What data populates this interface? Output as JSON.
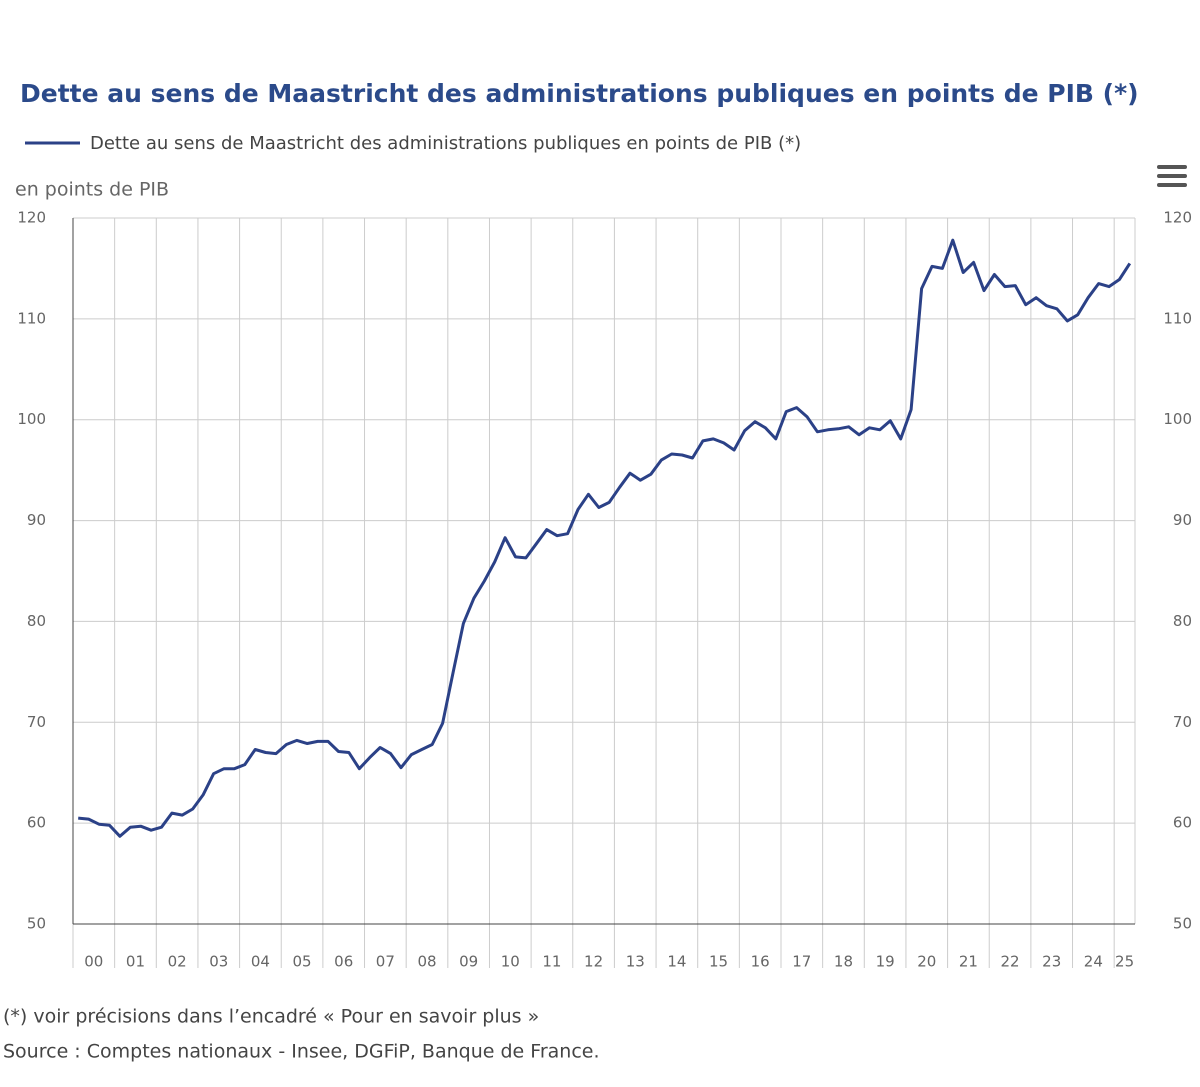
{
  "chart_data": {
    "type": "line",
    "title": "Dette au sens de Maastricht des administrations publiques en points de PIB (*)",
    "y_label": "en points de PIB",
    "notes": [
      "(*) voir précisions dans l’encadré « Pour en savoir plus »",
      "Source : Comptes nationaux - Insee, DGFiP, Banque de France."
    ],
    "x": [
      "00",
      null,
      null,
      null,
      "01",
      null,
      null,
      null,
      "02",
      null,
      null,
      null,
      "03",
      null,
      null,
      null,
      "04",
      null,
      null,
      null,
      "05",
      null,
      null,
      null,
      "06",
      null,
      null,
      null,
      "07",
      null,
      null,
      null,
      "08",
      null,
      null,
      null,
      "09",
      null,
      null,
      null,
      "10",
      null,
      null,
      null,
      "11",
      null,
      null,
      null,
      "12",
      null,
      null,
      null,
      "13",
      null,
      null,
      null,
      "14",
      null,
      null,
      null,
      "15",
      null,
      null,
      null,
      "16",
      null,
      null,
      null,
      "17",
      null,
      null,
      null,
      "18",
      null,
      null,
      null,
      "19",
      null,
      null,
      null,
      "20",
      null,
      null,
      null,
      "21",
      null,
      null,
      null,
      "22",
      null,
      null,
      null,
      "23",
      null,
      null,
      null,
      "24",
      null,
      null,
      null,
      "25",
      null
    ],
    "series": [
      {
        "name": "Dette au sens de Maastricht des administrations publiques en points de PIB (*)",
        "color": "#2b4187",
        "values": [
          60.5,
          60.4,
          59.9,
          59.8,
          58.7,
          59.6,
          59.7,
          59.3,
          59.6,
          61.0,
          60.8,
          61.4,
          62.8,
          64.9,
          65.4,
          65.4,
          65.8,
          67.3,
          67.0,
          66.9,
          67.8,
          68.2,
          67.9,
          68.1,
          68.1,
          67.1,
          67.0,
          65.4,
          66.5,
          67.5,
          66.9,
          65.5,
          66.8,
          67.3,
          67.8,
          69.9,
          74.9,
          79.8,
          82.3,
          84.0,
          85.9,
          88.3,
          86.4,
          86.3,
          87.7,
          89.1,
          88.5,
          88.7,
          91.1,
          92.6,
          91.3,
          91.8,
          93.3,
          94.7,
          94.0,
          94.6,
          96.0,
          96.6,
          96.5,
          96.2,
          97.9,
          98.1,
          97.7,
          97.0,
          98.9,
          99.8,
          99.2,
          98.1,
          100.8,
          101.2,
          100.3,
          98.8,
          99.0,
          99.1,
          99.3,
          98.5,
          99.2,
          99.0,
          99.9,
          98.1,
          101.0,
          113.0,
          115.2,
          115.0,
          117.8,
          114.6,
          115.6,
          112.8,
          114.4,
          113.2,
          113.3,
          111.4,
          112.1,
          111.3,
          111.0,
          109.8,
          110.4,
          112.1,
          113.5,
          113.2,
          113.9,
          115.5
        ]
      }
    ],
    "ylim": [
      50,
      120
    ],
    "yticks": [
      50,
      60,
      70,
      80,
      90,
      100,
      110,
      120
    ],
    "grid": true
  }
}
